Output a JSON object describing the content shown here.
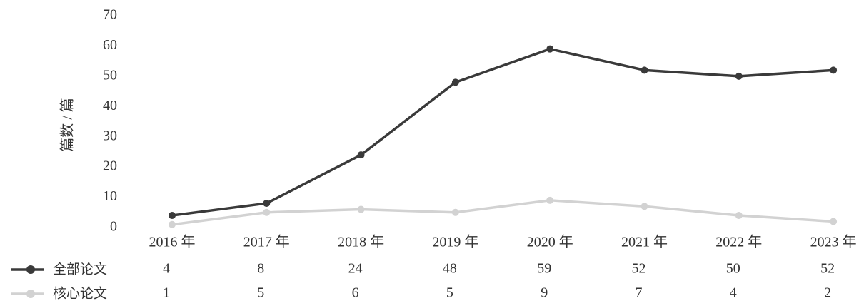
{
  "chart_data": {
    "type": "line",
    "y_label": "篇数 / 篇",
    "categories": [
      "2016 年",
      "2017 年",
      "2018 年",
      "2019 年",
      "2020 年",
      "2021 年",
      "2022 年",
      "2023 年"
    ],
    "series": [
      {
        "name": "全部论文",
        "color": "#3a3a3a",
        "values": [
          4,
          8,
          24,
          48,
          59,
          52,
          50,
          52
        ]
      },
      {
        "name": "核心论文",
        "color": "#d2d2d2",
        "values": [
          1,
          5,
          6,
          5,
          9,
          7,
          4,
          2
        ]
      }
    ],
    "ylim": [
      0,
      70
    ],
    "yticks": [
      0,
      10,
      20,
      30,
      40,
      50,
      60,
      70
    ],
    "grid": false
  }
}
